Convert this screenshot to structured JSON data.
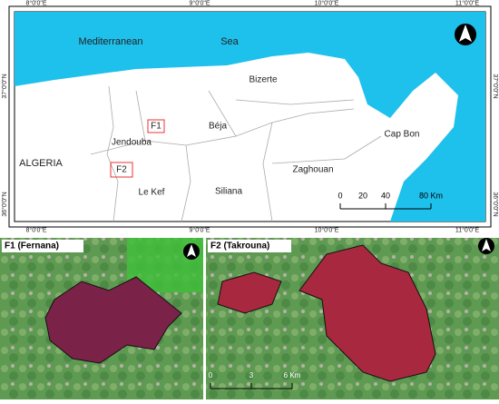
{
  "top_map": {
    "lon_labels": [
      "8°0'0\"E",
      "9°0'0\"E",
      "10°0'0\"E",
      "11°0'0\"E"
    ],
    "lat_labels": [
      "37°0'0\"N",
      "36°0'0\"N"
    ],
    "places": {
      "sea1": "Mediterranean",
      "sea2": "Sea",
      "bizerte": "Bizerte",
      "beja": "Béja",
      "jendouba": "Jendouba",
      "capbon": "Cap Bon",
      "algeria": "ALGERIA",
      "zaghouan": "Zaghouan",
      "siliana": "Siliana",
      "lekef": "Le Kef",
      "f1": "F1",
      "f2": "F2"
    },
    "scale": [
      "0",
      "20",
      "40",
      "80 Km"
    ]
  },
  "panel_f1": {
    "title": "F1 (Fernana)"
  },
  "panel_f2": {
    "title": "F2 (Takrouna)",
    "scale": [
      "0",
      "3",
      "6 Km"
    ]
  }
}
